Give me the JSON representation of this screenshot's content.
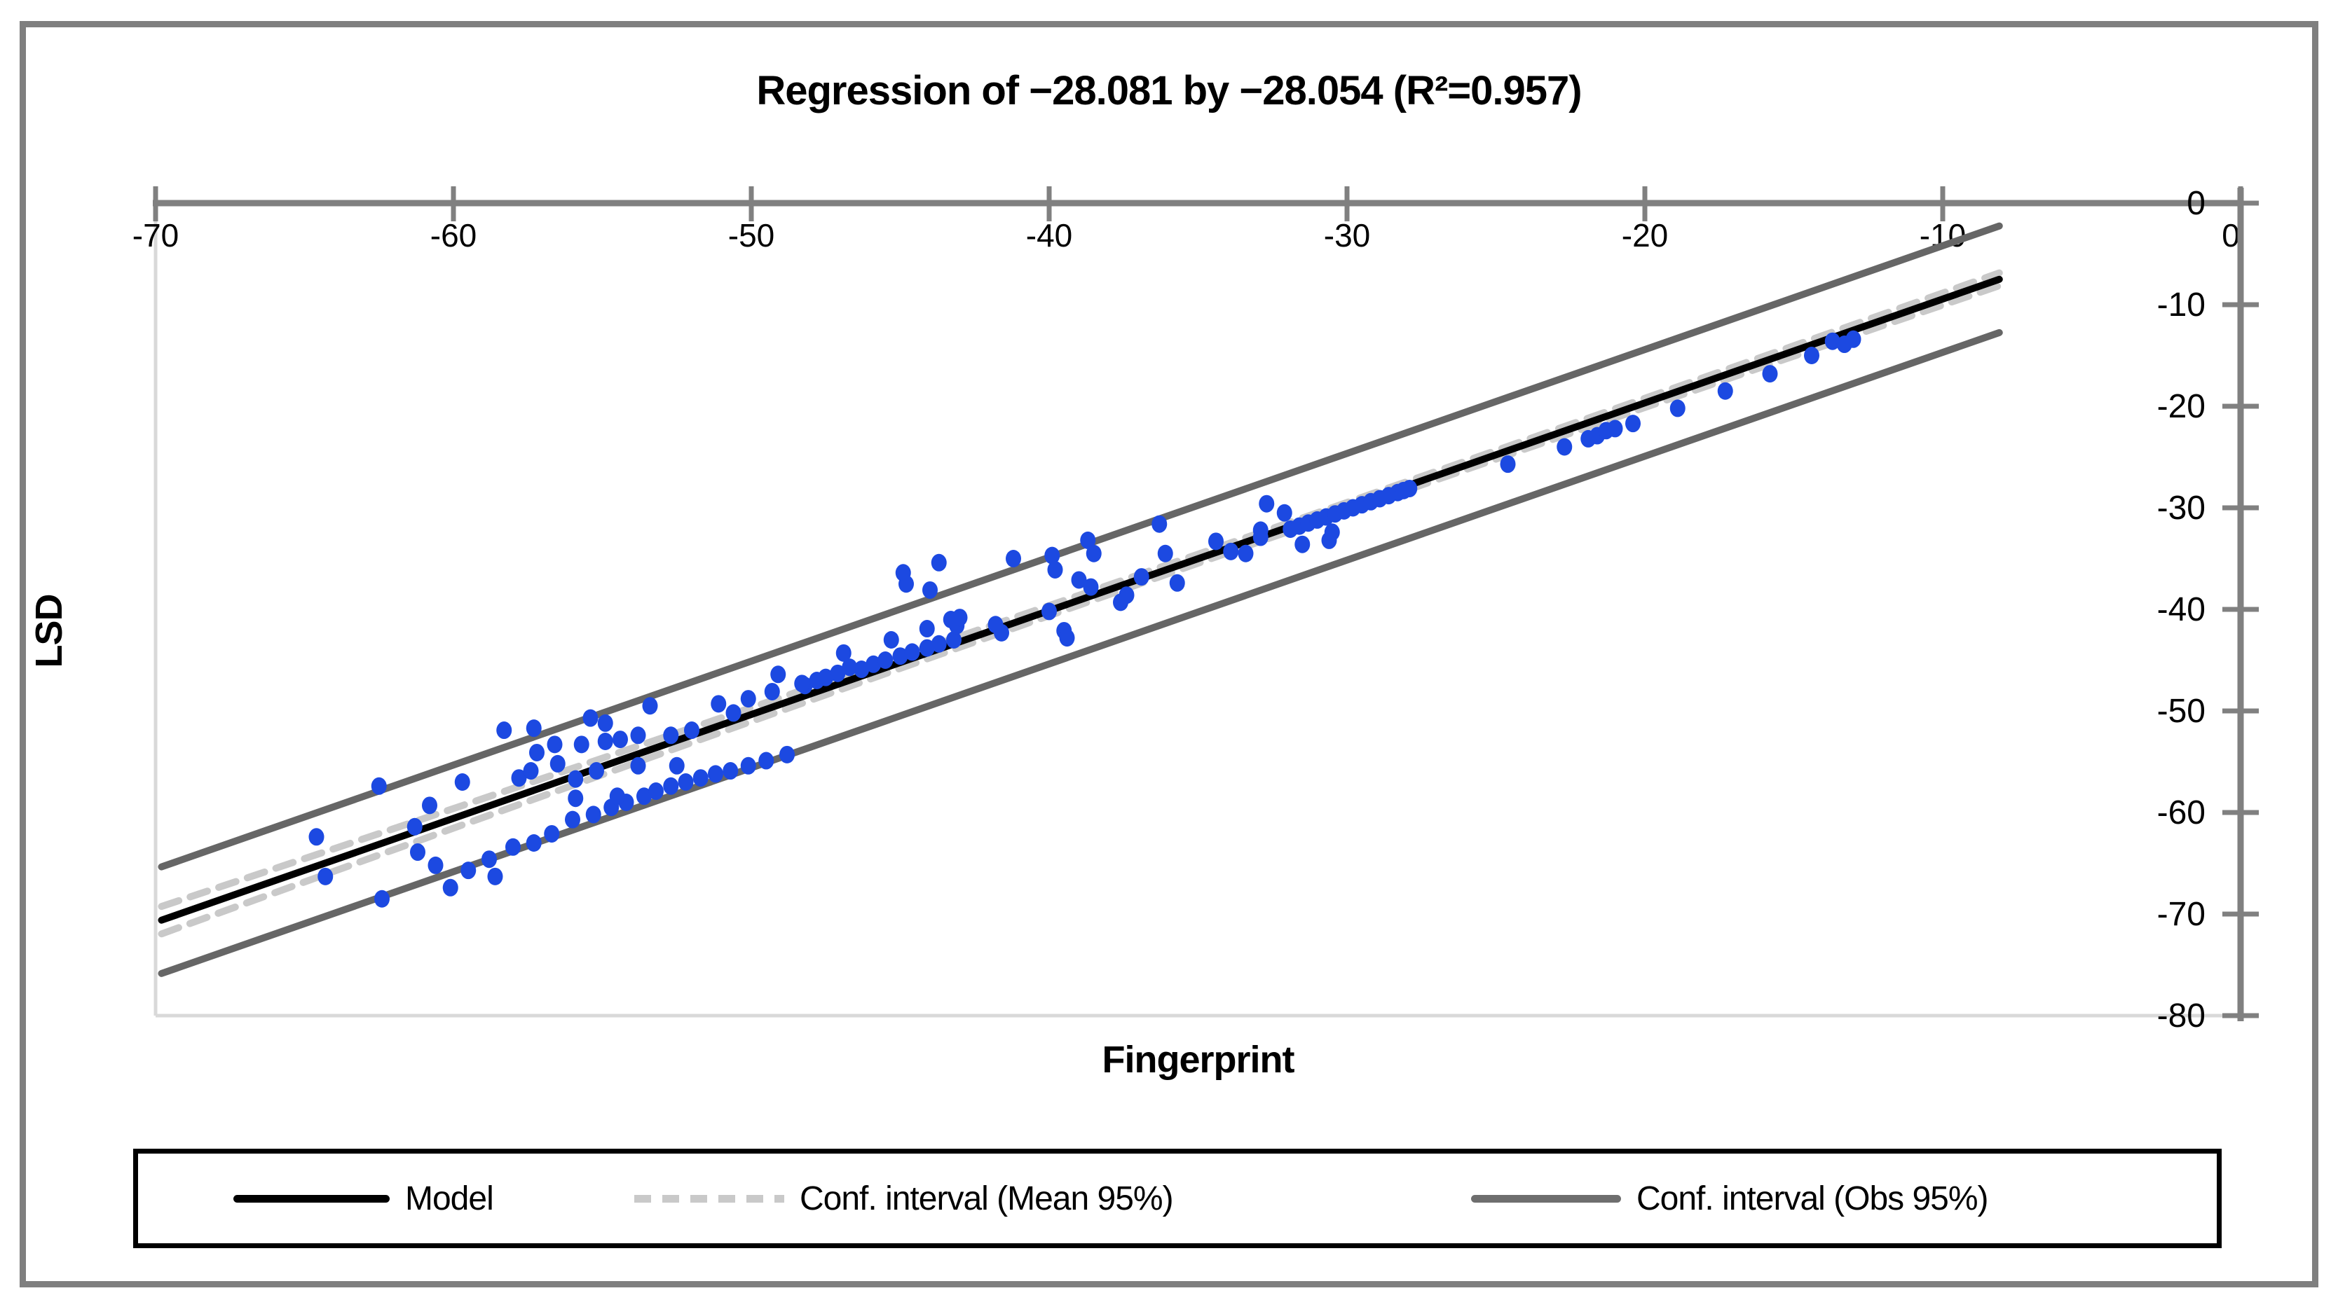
{
  "title": "Regression of −28.081 by −28.054 (R²=0.957)",
  "legend": {
    "model_label": "Model",
    "ci_mean_label": "Conf. interval (Mean 95%)",
    "ci_obs_label": "Conf. interval (Obs 95%)"
  },
  "colors": {
    "frame_border": "#7f7f7f",
    "axis": "#808080",
    "plot_border_light": "#d9d9d9",
    "model_line": "#000000",
    "ci_mean_line": "#c9c9c9",
    "ci_obs_line": "#666666",
    "point": "#1c49e1",
    "text": "#000000"
  },
  "chart_data": {
    "type": "scatter",
    "title": "Regression of −28.081 by −28.054 (R²=0.957)",
    "xlabel": "Fingerprint",
    "ylabel": "LSD",
    "xlim": [
      -70,
      0
    ],
    "ylim": [
      -80,
      0
    ],
    "x_axis_position": "top",
    "y_axis_position": "right",
    "grid": false,
    "legend_position": "bottom",
    "x_tick_values": [
      -70,
      -60,
      -50,
      -40,
      -30,
      -20,
      -10,
      0
    ],
    "x_tick_labels": [
      "-70",
      "-60",
      "-50",
      "-40",
      "-30",
      "-20",
      "-10",
      "0"
    ],
    "y_tick_values": [
      0,
      -10,
      -20,
      -30,
      -40,
      -50,
      -60,
      -70,
      -80
    ],
    "y_tick_labels": [
      "0",
      "-10",
      "-20",
      "-30",
      "-40",
      "-50",
      "-60",
      "-70",
      "-80"
    ],
    "model_line": {
      "x1": -69.8,
      "y1": -70.6,
      "x2": -8.1,
      "y2": -7.5
    },
    "ci_mean": {
      "offset_center": 0.42,
      "offset_edge": 1.35,
      "pinch_x": -28.05
    },
    "ci_obs": {
      "offset": 5.25
    },
    "series": [
      {
        "name": "Observations",
        "points": [
          [
            -64.6,
            -62.4
          ],
          [
            -64.3,
            -66.3
          ],
          [
            -62.5,
            -57.4
          ],
          [
            -62.4,
            -68.5
          ],
          [
            -61.3,
            -61.4
          ],
          [
            -61.2,
            -63.9
          ],
          [
            -60.8,
            -59.3
          ],
          [
            -59.7,
            -57.0
          ],
          [
            -60.6,
            -65.2
          ],
          [
            -60.1,
            -67.4
          ],
          [
            -59.5,
            -65.7
          ],
          [
            -58.8,
            -64.6
          ],
          [
            -58.6,
            -66.3
          ],
          [
            -58.0,
            -63.4
          ],
          [
            -57.3,
            -63.0
          ],
          [
            -56.7,
            -62.1
          ],
          [
            -56.0,
            -60.7
          ],
          [
            -55.3,
            -60.2
          ],
          [
            -54.7,
            -59.5
          ],
          [
            -54.2,
            -59.0
          ],
          [
            -53.6,
            -58.4
          ],
          [
            -53.2,
            -57.9
          ],
          [
            -52.7,
            -57.4
          ],
          [
            -52.2,
            -57.0
          ],
          [
            -51.7,
            -56.6
          ],
          [
            -51.2,
            -56.2
          ],
          [
            -50.7,
            -55.9
          ],
          [
            -50.1,
            -55.4
          ],
          [
            -49.5,
            -54.9
          ],
          [
            -48.8,
            -54.3
          ],
          [
            -57.8,
            -56.6
          ],
          [
            -57.4,
            -55.9
          ],
          [
            -57.2,
            -54.1
          ],
          [
            -55.9,
            -58.6
          ],
          [
            -55.9,
            -56.7
          ],
          [
            -55.2,
            -55.9
          ],
          [
            -54.5,
            -58.4
          ],
          [
            -53.8,
            -55.4
          ],
          [
            -52.5,
            -55.4
          ],
          [
            -58.3,
            -51.9
          ],
          [
            -57.3,
            -51.7
          ],
          [
            -56.6,
            -53.3
          ],
          [
            -56.5,
            -55.2
          ],
          [
            -55.7,
            -53.3
          ],
          [
            -55.4,
            -50.7
          ],
          [
            -54.9,
            -51.2
          ],
          [
            -54.9,
            -53.0
          ],
          [
            -54.4,
            -52.8
          ],
          [
            -53.8,
            -52.4
          ],
          [
            -53.4,
            -49.5
          ],
          [
            -52.7,
            -52.4
          ],
          [
            -52.0,
            -51.9
          ],
          [
            -51.1,
            -49.3
          ],
          [
            -50.6,
            -50.2
          ],
          [
            -50.1,
            -48.8
          ],
          [
            -49.3,
            -48.1
          ],
          [
            -49.1,
            -46.4
          ],
          [
            -48.2,
            -47.5
          ],
          [
            -48.3,
            -47.3
          ],
          [
            -47.8,
            -47.0
          ],
          [
            -47.5,
            -46.7
          ],
          [
            -47.1,
            -46.3
          ],
          [
            -46.9,
            -44.3
          ],
          [
            -46.7,
            -45.7
          ],
          [
            -46.3,
            -45.9
          ],
          [
            -45.9,
            -45.4
          ],
          [
            -45.5,
            -45.0
          ],
          [
            -45.3,
            -43.0
          ],
          [
            -45.0,
            -44.6
          ],
          [
            -44.6,
            -44.2
          ],
          [
            -44.1,
            -43.8
          ],
          [
            -43.7,
            -43.4
          ],
          [
            -43.2,
            -43.0
          ],
          [
            -44.9,
            -36.4
          ],
          [
            -44.8,
            -37.5
          ],
          [
            -44.0,
            -38.1
          ],
          [
            -43.7,
            -35.4
          ],
          [
            -44.1,
            -41.9
          ],
          [
            -43.3,
            -41.0
          ],
          [
            -43.1,
            -41.6
          ],
          [
            -43.0,
            -40.8
          ],
          [
            -41.8,
            -41.5
          ],
          [
            -41.6,
            -42.3
          ],
          [
            -41.2,
            -35.0
          ],
          [
            -40.0,
            -40.2
          ],
          [
            -39.9,
            -34.7
          ],
          [
            -39.8,
            -36.1
          ],
          [
            -39.5,
            -42.1
          ],
          [
            -39.4,
            -42.8
          ],
          [
            -39.0,
            -37.1
          ],
          [
            -38.7,
            -33.2
          ],
          [
            -38.6,
            -37.8
          ],
          [
            -38.5,
            -34.5
          ],
          [
            -37.6,
            -39.3
          ],
          [
            -37.4,
            -38.6
          ],
          [
            -36.9,
            -36.8
          ],
          [
            -36.3,
            -31.6
          ],
          [
            -36.1,
            -34.5
          ],
          [
            -35.7,
            -37.4
          ],
          [
            -34.4,
            -33.3
          ],
          [
            -33.9,
            -34.3
          ],
          [
            -33.4,
            -34.5
          ],
          [
            -32.9,
            -32.2
          ],
          [
            -32.9,
            -32.9
          ],
          [
            -32.7,
            -29.6
          ],
          [
            -32.1,
            -30.5
          ],
          [
            -31.5,
            -33.6
          ],
          [
            -30.6,
            -33.2
          ],
          [
            -31.9,
            -32.1
          ],
          [
            -31.6,
            -31.8
          ],
          [
            -31.3,
            -31.5
          ],
          [
            -31.0,
            -31.2
          ],
          [
            -30.7,
            -30.9
          ],
          [
            -30.4,
            -30.6
          ],
          [
            -30.1,
            -30.3
          ],
          [
            -29.8,
            -30.0
          ],
          [
            -29.5,
            -29.7
          ],
          [
            -29.2,
            -29.4
          ],
          [
            -28.9,
            -29.1
          ],
          [
            -28.6,
            -28.8
          ],
          [
            -28.3,
            -28.5
          ],
          [
            -28.1,
            -28.3
          ],
          [
            -27.9,
            -28.1
          ],
          [
            -30.5,
            -32.4
          ],
          [
            -24.6,
            -25.7
          ],
          [
            -22.7,
            -24.0
          ],
          [
            -21.9,
            -23.2
          ],
          [
            -21.6,
            -22.9
          ],
          [
            -21.3,
            -22.4
          ],
          [
            -21.0,
            -22.2
          ],
          [
            -20.4,
            -21.7
          ],
          [
            -18.9,
            -20.2
          ],
          [
            -17.3,
            -18.5
          ],
          [
            -15.8,
            -16.8
          ],
          [
            -14.4,
            -15.0
          ],
          [
            -13.7,
            -13.6
          ],
          [
            -13.3,
            -13.9
          ],
          [
            -13.0,
            -13.4
          ]
        ]
      }
    ]
  }
}
